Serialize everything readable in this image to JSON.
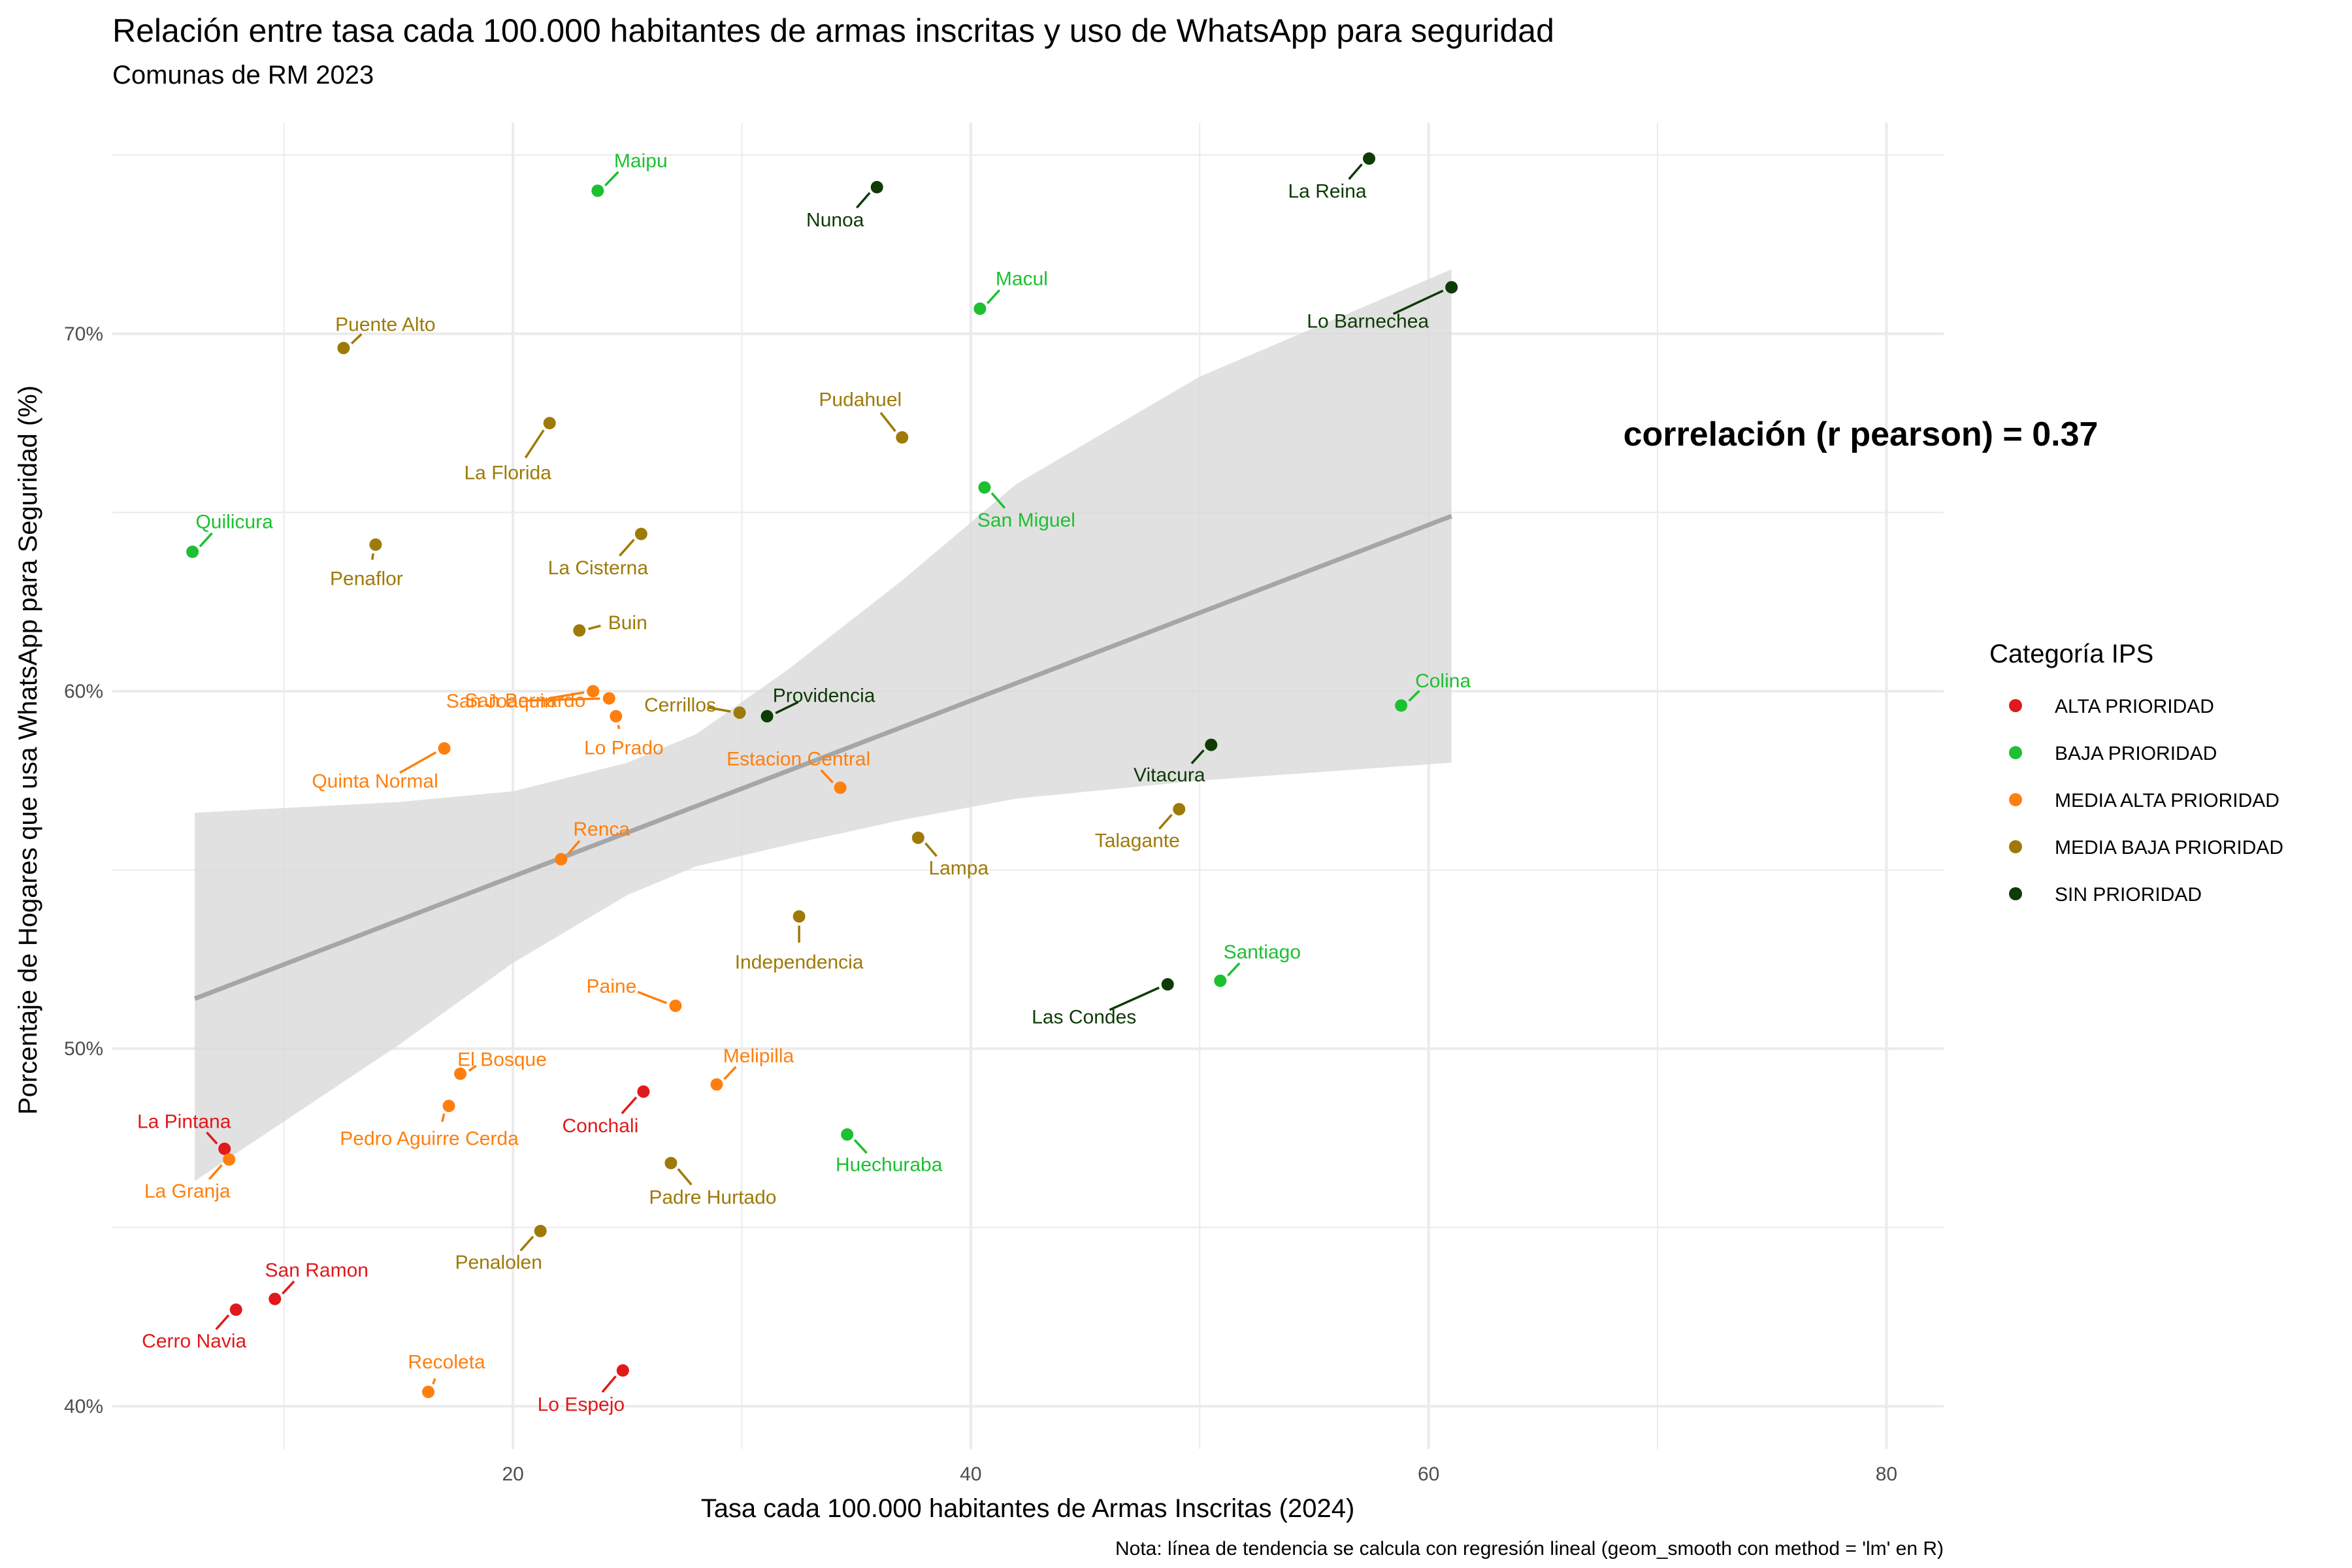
{
  "colors": {
    "ALTA PRIORIDAD": "#e0191b",
    "BAJA PRIORIDAD": "#1cc031",
    "MEDIA ALTA PRIORIDAD": "#ff7f0e",
    "MEDIA BAJA PRIORIDAD": "#9e7a08",
    "SIN PRIORIDAD": "#0e3b06",
    "trend_line": "#a6a6a6",
    "ribbon": "#d9d9d9",
    "grid": "#ebebeb"
  },
  "chart_data": {
    "type": "scatter",
    "title": "Relación entre tasa cada 100.000 habitantes de armas inscritas y uso de WhatsApp para seguridad",
    "subtitle": "Comunas de RM 2023",
    "xlabel": "Tasa cada 100.000 habitantes de Armas Inscritas (2024)",
    "ylabel": "Porcentaje de Hogares que usa WhatsApp para Seguridad (%)",
    "caption": "Nota: línea de tendencia se calcula con regresión lineal (geom_smooth con method = 'lm' en R)",
    "annotation": "correlación (r pearson) = 0.37",
    "xlim": [
      2.5,
      82.5
    ],
    "ylim": [
      38.8,
      75.9
    ],
    "x_ticks": [
      20,
      40,
      60,
      80
    ],
    "x_minor": [
      10,
      30,
      50,
      70
    ],
    "y_ticks": [
      40,
      50,
      60,
      70
    ],
    "y_tick_labels": [
      "40%",
      "50%",
      "60%",
      "70%"
    ],
    "y_minor": [
      45,
      55,
      65,
      75
    ],
    "grid": true,
    "legend": {
      "title": "Categoría IPS",
      "position": "right",
      "entries": [
        "ALTA PRIORIDAD",
        "BAJA PRIORIDAD",
        "MEDIA ALTA PRIORIDAD",
        "MEDIA BAJA PRIORIDAD",
        "SIN PRIORIDAD"
      ]
    },
    "trend": {
      "x_range": [
        6.1,
        61.0
      ],
      "y_at_start": 51.4,
      "y_at_end": 64.9
    },
    "ribbon": [
      [
        6.1,
        56.6,
        46.3
      ],
      [
        15,
        56.9,
        50.1
      ],
      [
        20,
        57.2,
        52.4
      ],
      [
        25,
        58.0,
        54.3
      ],
      [
        28,
        58.8,
        55.1
      ],
      [
        32,
        60.6,
        55.7
      ],
      [
        37,
        63.1,
        56.4
      ],
      [
        42,
        65.8,
        57.0
      ],
      [
        50,
        68.8,
        57.5
      ],
      [
        61.0,
        71.8,
        58.0
      ]
    ],
    "points": [
      {
        "name": "Maipu",
        "x": 23.7,
        "y": 74.0,
        "cat": "BAJA PRIORIDAD"
      },
      {
        "name": "Nunoa",
        "x": 35.9,
        "y": 74.1,
        "cat": "SIN PRIORIDAD"
      },
      {
        "name": "La Reina",
        "x": 57.4,
        "y": 74.9,
        "cat": "SIN PRIORIDAD"
      },
      {
        "name": "Macul",
        "x": 40.4,
        "y": 70.7,
        "cat": "BAJA PRIORIDAD"
      },
      {
        "name": "Lo Barnechea",
        "x": 61.0,
        "y": 71.3,
        "cat": "SIN PRIORIDAD"
      },
      {
        "name": "Puente Alto",
        "x": 12.6,
        "y": 69.6,
        "cat": "MEDIA BAJA PRIORIDAD"
      },
      {
        "name": "La Florida",
        "x": 21.6,
        "y": 67.5,
        "cat": "MEDIA BAJA PRIORIDAD"
      },
      {
        "name": "Pudahuel",
        "x": 37.0,
        "y": 67.1,
        "cat": "MEDIA BAJA PRIORIDAD"
      },
      {
        "name": "San Miguel",
        "x": 40.6,
        "y": 65.7,
        "cat": "BAJA PRIORIDAD"
      },
      {
        "name": "Quilicura",
        "x": 6.0,
        "y": 63.9,
        "cat": "BAJA PRIORIDAD"
      },
      {
        "name": "Penaflor",
        "x": 14.0,
        "y": 64.1,
        "cat": "MEDIA BAJA PRIORIDAD"
      },
      {
        "name": "La Cisterna",
        "x": 25.6,
        "y": 64.4,
        "cat": "MEDIA BAJA PRIORIDAD"
      },
      {
        "name": "Buin",
        "x": 22.9,
        "y": 61.7,
        "cat": "MEDIA BAJA PRIORIDAD"
      },
      {
        "name": "San Bernardo",
        "x": 23.5,
        "y": 60.0,
        "cat": "MEDIA ALTA PRIORIDAD"
      },
      {
        "name": "San Joaquin",
        "x": 24.2,
        "y": 59.8,
        "cat": "MEDIA ALTA PRIORIDAD"
      },
      {
        "name": "Lo Prado",
        "x": 24.5,
        "y": 59.3,
        "cat": "MEDIA ALTA PRIORIDAD"
      },
      {
        "name": "Cerrillos",
        "x": 29.9,
        "y": 59.4,
        "cat": "MEDIA BAJA PRIORIDAD"
      },
      {
        "name": "Providencia",
        "x": 31.1,
        "y": 59.3,
        "cat": "SIN PRIORIDAD"
      },
      {
        "name": "Colina",
        "x": 58.8,
        "y": 59.6,
        "cat": "BAJA PRIORIDAD"
      },
      {
        "name": "Quinta Normal",
        "x": 17.0,
        "y": 58.4,
        "cat": "MEDIA ALTA PRIORIDAD"
      },
      {
        "name": "Vitacura",
        "x": 50.5,
        "y": 58.5,
        "cat": "SIN PRIORIDAD"
      },
      {
        "name": "Estacion Central",
        "x": 34.3,
        "y": 57.3,
        "cat": "MEDIA ALTA PRIORIDAD"
      },
      {
        "name": "Talagante",
        "x": 49.1,
        "y": 56.7,
        "cat": "MEDIA BAJA PRIORIDAD"
      },
      {
        "name": "Lampa",
        "x": 37.7,
        "y": 55.9,
        "cat": "MEDIA BAJA PRIORIDAD"
      },
      {
        "name": "Renca",
        "x": 22.1,
        "y": 55.3,
        "cat": "MEDIA ALTA PRIORIDAD"
      },
      {
        "name": "Independencia",
        "x": 32.5,
        "y": 53.7,
        "cat": "MEDIA BAJA PRIORIDAD"
      },
      {
        "name": "Santiago",
        "x": 50.9,
        "y": 51.9,
        "cat": "BAJA PRIORIDAD"
      },
      {
        "name": "Las Condes",
        "x": 48.6,
        "y": 51.8,
        "cat": "SIN PRIORIDAD"
      },
      {
        "name": "Paine",
        "x": 27.1,
        "y": 51.2,
        "cat": "MEDIA ALTA PRIORIDAD"
      },
      {
        "name": "El Bosque",
        "x": 17.7,
        "y": 49.3,
        "cat": "MEDIA ALTA PRIORIDAD"
      },
      {
        "name": "Melipilla",
        "x": 28.9,
        "y": 49.0,
        "cat": "MEDIA ALTA PRIORIDAD"
      },
      {
        "name": "Conchali",
        "x": 25.7,
        "y": 48.8,
        "cat": "ALTA PRIORIDAD"
      },
      {
        "name": "Pedro Aguirre Cerda",
        "x": 17.2,
        "y": 48.4,
        "cat": "MEDIA ALTA PRIORIDAD"
      },
      {
        "name": "Huechuraba",
        "x": 34.6,
        "y": 47.6,
        "cat": "BAJA PRIORIDAD"
      },
      {
        "name": "La Pintana",
        "x": 7.4,
        "y": 47.2,
        "cat": "ALTA PRIORIDAD"
      },
      {
        "name": "La Granja",
        "x": 7.6,
        "y": 46.9,
        "cat": "MEDIA ALTA PRIORIDAD"
      },
      {
        "name": "Padre Hurtado",
        "x": 26.9,
        "y": 46.8,
        "cat": "MEDIA BAJA PRIORIDAD"
      },
      {
        "name": "Penalolen",
        "x": 21.2,
        "y": 44.9,
        "cat": "MEDIA BAJA PRIORIDAD"
      },
      {
        "name": "San Ramon",
        "x": 9.6,
        "y": 43.0,
        "cat": "ALTA PRIORIDAD"
      },
      {
        "name": "Cerro Navia",
        "x": 7.9,
        "y": 42.7,
        "cat": "ALTA PRIORIDAD"
      },
      {
        "name": "Recoleta",
        "x": 16.3,
        "y": 40.4,
        "cat": "MEDIA ALTA PRIORIDAD"
      },
      {
        "name": "Lo Espejo",
        "x": 24.8,
        "y": 41.0,
        "cat": "ALTA PRIORIDAD"
      }
    ]
  }
}
